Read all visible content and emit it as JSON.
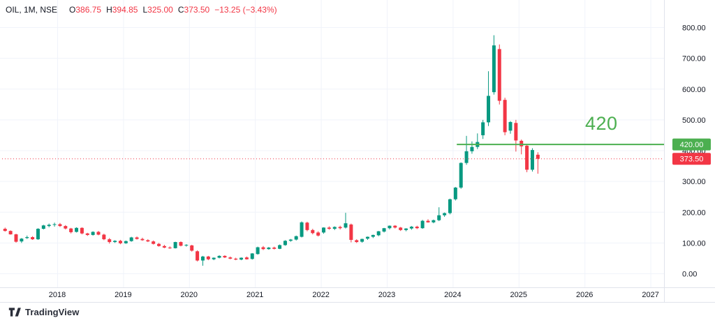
{
  "header": {
    "symbol": "OIL, 1M, NSE",
    "o_label": "O",
    "o_value": "386.75",
    "h_label": "H",
    "h_value": "394.85",
    "l_label": "L",
    "l_value": "325.00",
    "c_label": "C",
    "c_value": "373.50",
    "change": "−13.25 (−3.43%)"
  },
  "level_line": {
    "label": "420",
    "price": 420,
    "badge": "420.00",
    "color": "#4caf50",
    "starts_at": "2024-02"
  },
  "last_price": {
    "price": 373.5,
    "badge": "373.50",
    "color": "#f23645",
    "style": "dotted"
  },
  "watermark": {
    "brand": "TradingView"
  },
  "colors": {
    "background": "#ffffff",
    "grid": "#f0f3fa",
    "border": "#e0e3eb",
    "text": "#131722",
    "up_candle": "#089981",
    "down_candle": "#f23645",
    "level_green": "#4caf50",
    "price_red": "#f23645",
    "brand_text": "#2a2e39"
  },
  "chart_data": {
    "type": "candlestick",
    "title": "OIL, 1M, NSE",
    "symbol": "OIL",
    "interval": "1M",
    "exchange": "NSE",
    "grid": true,
    "legend_position": "none",
    "y_axis": {
      "min": 0,
      "max": 800,
      "step": 100,
      "side": "right",
      "tick_labels": [
        "0.00",
        "100.00",
        "200.00",
        "300.00",
        "400.00",
        "500.00",
        "600.00",
        "700.00",
        "800.00"
      ]
    },
    "x_axis": {
      "tick_labels": [
        "2018",
        "2019",
        "2020",
        "2021",
        "2022",
        "2023",
        "2024",
        "2025",
        "2026",
        "2027"
      ]
    },
    "annotations": {
      "horizontal_level": {
        "price": 420,
        "label": "420",
        "from": "2024-02",
        "color": "#4caf50"
      },
      "last_price_line": {
        "price": 373.5,
        "color": "#f23645",
        "style": "dotted"
      }
    },
    "columns": [
      "month",
      "open",
      "high",
      "low",
      "close"
    ],
    "series": [
      [
        "2017-03",
        146,
        150,
        137,
        139
      ],
      [
        "2017-04",
        139,
        141,
        127,
        128
      ],
      [
        "2017-05",
        128,
        130,
        101,
        104
      ],
      [
        "2017-06",
        105,
        116,
        100,
        114
      ],
      [
        "2017-07",
        116,
        124,
        113,
        119
      ],
      [
        "2017-08",
        119,
        122,
        110,
        112
      ],
      [
        "2017-09",
        112,
        148,
        110,
        146
      ],
      [
        "2017-10",
        146,
        159,
        144,
        157
      ],
      [
        "2017-11",
        155,
        163,
        151,
        159
      ],
      [
        "2017-12",
        159,
        166,
        153,
        161
      ],
      [
        "2018-01",
        161,
        165,
        152,
        155
      ],
      [
        "2018-02",
        155,
        158,
        144,
        147
      ],
      [
        "2018-03",
        147,
        149,
        131,
        135
      ],
      [
        "2018-04",
        136,
        151,
        134,
        149
      ],
      [
        "2018-05",
        149,
        151,
        128,
        131
      ],
      [
        "2018-06",
        131,
        133,
        123,
        126
      ],
      [
        "2018-07",
        126,
        138,
        124,
        136
      ],
      [
        "2018-08",
        136,
        139,
        125,
        127
      ],
      [
        "2018-09",
        127,
        130,
        109,
        112
      ],
      [
        "2018-10",
        112,
        116,
        98,
        103
      ],
      [
        "2018-11",
        103,
        109,
        100,
        107
      ],
      [
        "2018-12",
        107,
        110,
        96,
        99
      ],
      [
        "2019-01",
        99,
        108,
        97,
        106
      ],
      [
        "2019-02",
        106,
        120,
        104,
        118
      ],
      [
        "2019-03",
        118,
        121,
        111,
        113
      ],
      [
        "2019-04",
        113,
        117,
        107,
        109
      ],
      [
        "2019-05",
        109,
        112,
        103,
        105
      ],
      [
        "2019-06",
        105,
        108,
        95,
        97
      ],
      [
        "2019-07",
        97,
        100,
        88,
        90
      ],
      [
        "2019-08",
        90,
        94,
        83,
        85
      ],
      [
        "2019-09",
        85,
        89,
        81,
        83
      ],
      [
        "2019-10",
        83,
        104,
        82,
        103
      ],
      [
        "2019-11",
        103,
        105,
        89,
        91
      ],
      [
        "2019-12",
        92,
        96,
        88,
        94
      ],
      [
        "2020-01",
        92,
        94,
        72,
        75
      ],
      [
        "2020-02",
        73,
        76,
        40,
        43
      ],
      [
        "2020-03",
        43,
        58,
        26,
        56
      ],
      [
        "2020-04",
        56,
        58,
        44,
        47
      ],
      [
        "2020-05",
        47,
        53,
        44,
        52
      ],
      [
        "2020-06",
        52,
        60,
        50,
        58
      ],
      [
        "2020-07",
        58,
        60,
        51,
        53
      ],
      [
        "2020-08",
        53,
        56,
        47,
        49
      ],
      [
        "2020-09",
        49,
        52,
        44,
        46
      ],
      [
        "2020-10",
        46,
        53,
        44,
        52
      ],
      [
        "2020-11",
        53,
        56,
        46,
        47
      ],
      [
        "2020-12",
        48,
        67,
        46,
        66
      ],
      [
        "2021-01",
        64,
        88,
        62,
        86
      ],
      [
        "2021-02",
        86,
        90,
        77,
        80
      ],
      [
        "2021-03",
        80,
        87,
        78,
        85
      ],
      [
        "2021-04",
        85,
        88,
        79,
        81
      ],
      [
        "2021-05",
        81,
        95,
        80,
        93
      ],
      [
        "2021-06",
        93,
        109,
        91,
        107
      ],
      [
        "2021-07",
        107,
        113,
        104,
        111
      ],
      [
        "2021-08",
        111,
        124,
        108,
        122
      ],
      [
        "2021-09",
        120,
        170,
        118,
        167
      ],
      [
        "2021-10",
        166,
        169,
        138,
        142
      ],
      [
        "2021-11",
        142,
        146,
        128,
        132
      ],
      [
        "2021-12",
        134,
        138,
        121,
        124
      ],
      [
        "2022-01",
        134,
        151,
        130,
        150
      ],
      [
        "2022-02",
        150,
        154,
        143,
        146
      ],
      [
        "2022-03",
        146,
        154,
        142,
        152
      ],
      [
        "2022-04",
        152,
        156,
        144,
        148
      ],
      [
        "2022-05",
        150,
        198,
        147,
        164
      ],
      [
        "2022-06",
        160,
        163,
        102,
        110
      ],
      [
        "2022-07",
        109,
        112,
        100,
        103
      ],
      [
        "2022-08",
        104,
        114,
        101,
        113
      ],
      [
        "2022-09",
        114,
        121,
        110,
        120
      ],
      [
        "2022-10",
        120,
        127,
        116,
        126
      ],
      [
        "2022-11",
        125,
        139,
        122,
        138
      ],
      [
        "2022-12",
        137,
        149,
        134,
        148
      ],
      [
        "2023-01",
        148,
        157,
        144,
        156
      ],
      [
        "2023-02",
        156,
        158,
        147,
        150
      ],
      [
        "2023-03",
        150,
        152,
        139,
        142
      ],
      [
        "2023-04",
        142,
        148,
        138,
        147
      ],
      [
        "2023-05",
        147,
        155,
        143,
        153
      ],
      [
        "2023-06",
        153,
        156,
        145,
        148
      ],
      [
        "2023-07",
        148,
        175,
        146,
        172
      ],
      [
        "2023-08",
        172,
        177,
        166,
        167
      ],
      [
        "2023-09",
        167,
        176,
        164,
        174
      ],
      [
        "2023-10",
        174,
        216,
        171,
        190
      ],
      [
        "2023-11",
        190,
        199,
        185,
        197
      ],
      [
        "2023-12",
        197,
        244,
        193,
        242
      ],
      [
        "2024-01",
        242,
        282,
        238,
        280
      ],
      [
        "2024-02",
        280,
        362,
        276,
        360
      ],
      [
        "2024-03",
        360,
        448,
        354,
        398
      ],
      [
        "2024-04",
        398,
        430,
        390,
        412
      ],
      [
        "2024-05",
        412,
        456,
        405,
        428
      ],
      [
        "2024-06",
        450,
        500,
        438,
        492
      ],
      [
        "2024-07",
        492,
        658,
        480,
        578
      ],
      [
        "2024-08",
        590,
        775,
        582,
        742
      ],
      [
        "2024-09",
        730,
        745,
        550,
        562
      ],
      [
        "2024-10",
        565,
        572,
        450,
        460
      ],
      [
        "2024-11",
        465,
        496,
        455,
        493
      ],
      [
        "2024-12",
        490,
        500,
        397,
        433
      ],
      [
        "2025-01",
        432,
        436,
        388,
        414
      ],
      [
        "2025-02",
        416,
        420,
        330,
        338
      ],
      [
        "2025-03",
        338,
        408,
        332,
        402
      ],
      [
        "2025-04",
        386.75,
        394.85,
        325,
        373.5
      ]
    ]
  }
}
